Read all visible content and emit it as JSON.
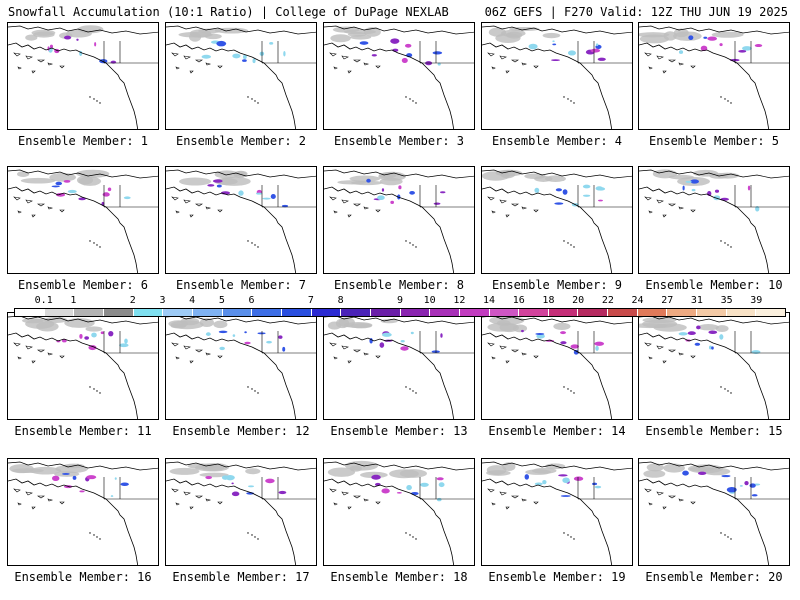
{
  "header": {
    "left": "Snowfall Accumulation (10:1 Ratio) | College of DuPage NEXLAB",
    "right": "06Z GEFS | F270 Valid: 12Z THU JUN 19 2025"
  },
  "captions": [
    "Ensemble Member: 1",
    "Ensemble Member: 2",
    "Ensemble Member: 3",
    "Ensemble Member: 4",
    "Ensemble Member: 5",
    "Ensemble Member: 6",
    "Ensemble Member: 7",
    "Ensemble Member: 8",
    "Ensemble Member: 9",
    "Ensemble Member: 10",
    "Ensemble Member: 11",
    "Ensemble Member: 12",
    "Ensemble Member: 13",
    "Ensemble Member: 14",
    "Ensemble Member: 15",
    "Ensemble Member: 16",
    "Ensemble Member: 17",
    "Ensemble Member: 18",
    "Ensemble Member: 19",
    "Ensemble Member: 20"
  ],
  "legend": {
    "labels": [
      "0.1",
      "1",
      "2",
      "3",
      "4",
      "5",
      "6",
      "7",
      "8",
      "9",
      "10",
      "12",
      "14",
      "16",
      "18",
      "20",
      "22",
      "24",
      "27",
      "31",
      "35",
      "39"
    ],
    "colors": [
      "#ffffff",
      "#d9d9d9",
      "#b3b3b3",
      "#8c8c8c",
      "#7fe0f0",
      "#9ecbf6",
      "#7fb2f2",
      "#5a8fea",
      "#3d6ee6",
      "#2a4fe0",
      "#2b2ad2",
      "#4a22b8",
      "#6a1ea8",
      "#8a24b0",
      "#a830b8",
      "#c23cc0",
      "#cf56c4",
      "#d2429c",
      "#c52e78",
      "#b62a60",
      "#c84a4a",
      "#e07a5a",
      "#eeaa82",
      "#f4caa6",
      "#f8e2c6",
      "#fbf0de"
    ]
  },
  "colors": {
    "coast": "#000000",
    "snow_light": "#bdbdbd",
    "snow_mid": "#8fd8ee",
    "snow_blue": "#3355e6",
    "snow_purple": "#8a2ac2",
    "snow_magenta": "#cc44cc"
  }
}
